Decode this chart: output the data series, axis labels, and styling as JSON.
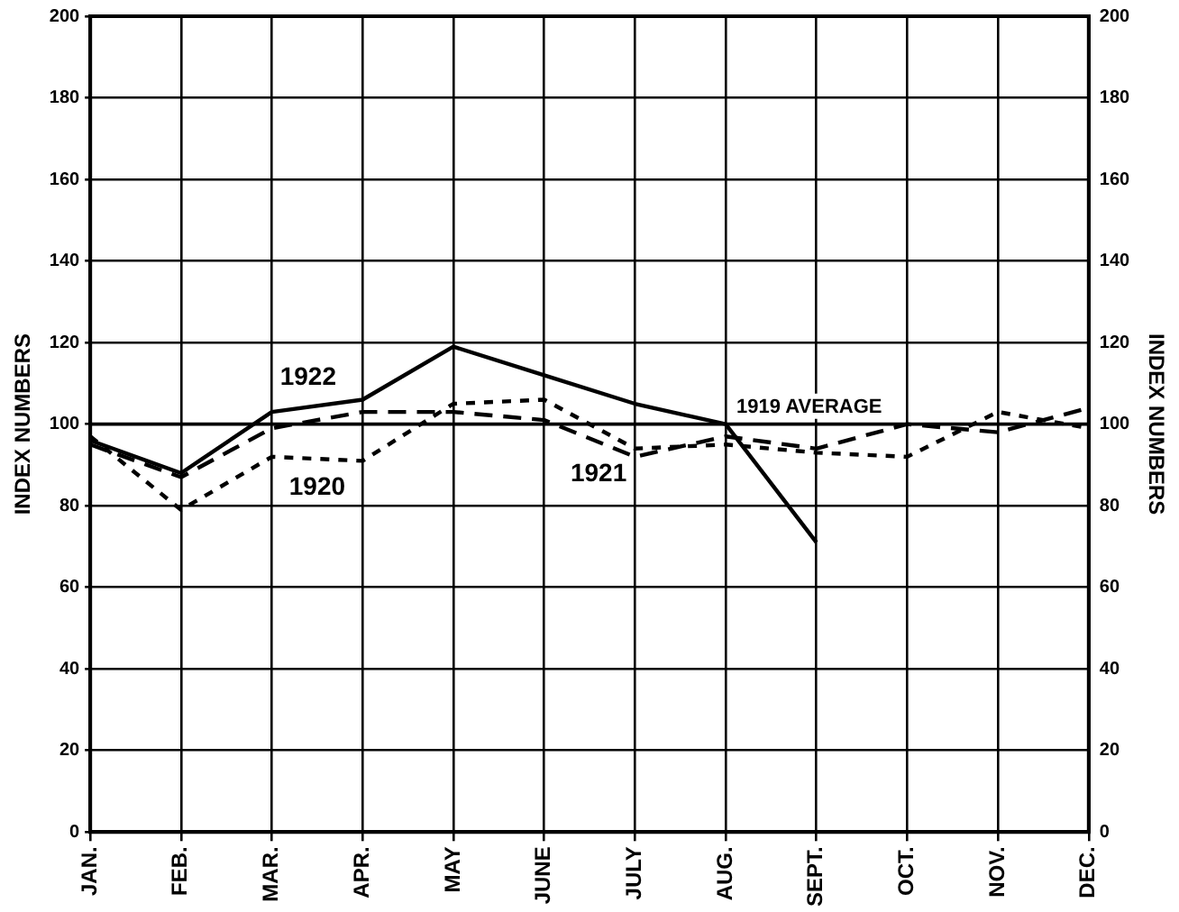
{
  "chart_data": {
    "type": "line",
    "ylabel": "INDEX NUMBERS",
    "y2label": "INDEX NUMBERS",
    "categories": [
      "JAN.",
      "FEB.",
      "MAR.",
      "APR.",
      "MAY",
      "JUNE",
      "JULY",
      "AUG.",
      "SEPT.",
      "OCT.",
      "NOV.",
      "DEC."
    ],
    "series": [
      {
        "name": "1922",
        "color": "#000000",
        "line_style": "solid",
        "values": [
          96,
          88,
          103,
          106,
          119,
          112,
          105,
          100,
          71,
          null,
          null,
          null
        ]
      },
      {
        "name": "1920",
        "color": "#000000",
        "line_style": "dashed",
        "values": [
          97,
          79,
          92,
          91,
          105,
          106,
          94,
          95,
          93,
          92,
          103,
          99
        ]
      },
      {
        "name": "1921",
        "color": "#000000",
        "line_style": "dashed",
        "values": [
          95,
          87,
          99,
          103,
          103,
          101,
          92,
          97,
          94,
          100,
          98,
          104
        ]
      }
    ],
    "ylim": [
      0,
      200
    ],
    "yticks": [
      0,
      20,
      40,
      60,
      80,
      100,
      120,
      140,
      160,
      180,
      200
    ],
    "y2lim": [
      0,
      200
    ],
    "y2ticks": [
      0,
      20,
      40,
      60,
      80,
      100,
      120,
      140,
      160,
      180,
      200
    ],
    "ref_lines": [
      {
        "axis": "y",
        "value": 100,
        "label": "1919 AVERAGE",
        "color": "#000000"
      }
    ],
    "grid": true,
    "legend": false,
    "marker": "none"
  }
}
